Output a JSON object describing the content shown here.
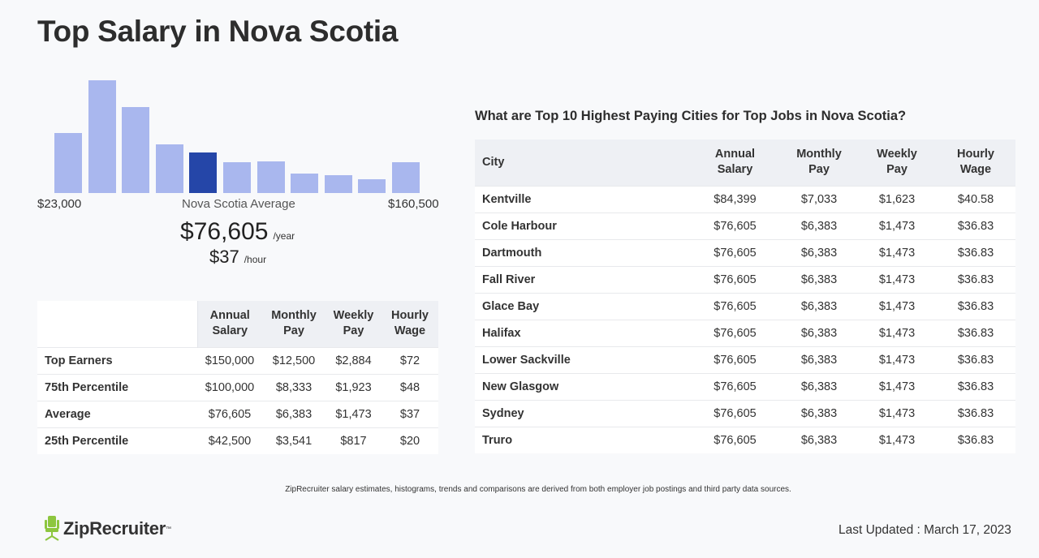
{
  "page": {
    "title": "Top Salary in Nova Scotia"
  },
  "histogram": {
    "min_label": "$23,000",
    "max_label": "$160,500",
    "avg_label": "Nova Scotia Average",
    "highlight_index": 4,
    "bar_color": "#a9b7ee",
    "highlight_color": "#2546a8",
    "relative_heights": [
      0.53,
      1.0,
      0.76,
      0.43,
      0.36,
      0.27,
      0.28,
      0.17,
      0.16,
      0.12,
      0.27
    ]
  },
  "average": {
    "annual": "$76,605",
    "annual_unit": "/year",
    "hourly": "$37",
    "hourly_unit": "/hour"
  },
  "percentile_table": {
    "headers": [
      [
        "Annual",
        "Salary"
      ],
      [
        "Monthly",
        "Pay"
      ],
      [
        "Weekly",
        "Pay"
      ],
      [
        "Hourly",
        "Wage"
      ]
    ],
    "rows": [
      {
        "label": "Top Earners",
        "values": [
          "$150,000",
          "$12,500",
          "$2,884",
          "$72"
        ]
      },
      {
        "label": "75th Percentile",
        "values": [
          "$100,000",
          "$8,333",
          "$1,923",
          "$48"
        ]
      },
      {
        "label": "Average",
        "values": [
          "$76,605",
          "$6,383",
          "$1,473",
          "$37"
        ]
      },
      {
        "label": "25th Percentile",
        "values": [
          "$42,500",
          "$3,541",
          "$817",
          "$20"
        ]
      }
    ]
  },
  "cities": {
    "heading": "What are Top 10 Highest Paying Cities for Top Jobs in Nova Scotia?",
    "city_header": "City",
    "headers": [
      [
        "Annual",
        "Salary"
      ],
      [
        "Monthly",
        "Pay"
      ],
      [
        "Weekly",
        "Pay"
      ],
      [
        "Hourly",
        "Wage"
      ]
    ],
    "rows": [
      {
        "city": "Kentville",
        "values": [
          "$84,399",
          "$7,033",
          "$1,623",
          "$40.58"
        ]
      },
      {
        "city": "Cole Harbour",
        "values": [
          "$76,605",
          "$6,383",
          "$1,473",
          "$36.83"
        ]
      },
      {
        "city": "Dartmouth",
        "values": [
          "$76,605",
          "$6,383",
          "$1,473",
          "$36.83"
        ]
      },
      {
        "city": "Fall River",
        "values": [
          "$76,605",
          "$6,383",
          "$1,473",
          "$36.83"
        ]
      },
      {
        "city": "Glace Bay",
        "values": [
          "$76,605",
          "$6,383",
          "$1,473",
          "$36.83"
        ]
      },
      {
        "city": "Halifax",
        "values": [
          "$76,605",
          "$6,383",
          "$1,473",
          "$36.83"
        ]
      },
      {
        "city": "Lower Sackville",
        "values": [
          "$76,605",
          "$6,383",
          "$1,473",
          "$36.83"
        ]
      },
      {
        "city": "New Glasgow",
        "values": [
          "$76,605",
          "$6,383",
          "$1,473",
          "$36.83"
        ]
      },
      {
        "city": "Sydney",
        "values": [
          "$76,605",
          "$6,383",
          "$1,473",
          "$36.83"
        ]
      },
      {
        "city": "Truro",
        "values": [
          "$76,605",
          "$6,383",
          "$1,473",
          "$36.83"
        ]
      }
    ]
  },
  "footer": {
    "disclaimer": "ZipRecruiter salary estimates, histograms, trends and comparisons are derived from both employer job postings and third party data sources.",
    "logo_text": "ZipRecruiter",
    "logo_icon": "chair-icon",
    "logo_color": "#8dc63f",
    "last_updated": "Last Updated : March 17, 2023"
  }
}
